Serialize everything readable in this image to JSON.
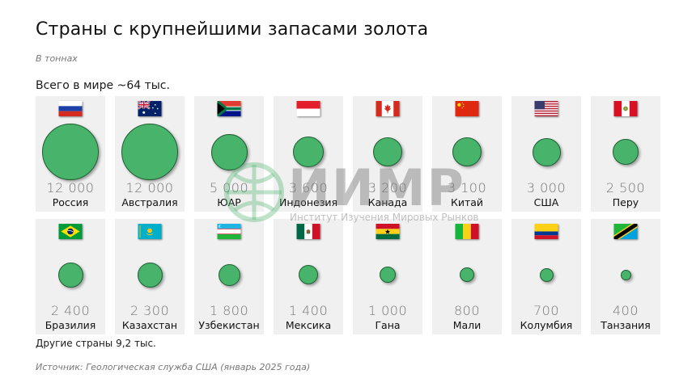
{
  "header": {
    "title": "Страны с крупнейшими запасами золота",
    "subtitle": "В тоннах",
    "world_total": "Всего в мире ~64 тыс."
  },
  "footer": {
    "others": "Другие страны 9,2 тыс.",
    "source": "Источник: Геологическая служба США (январь 2025 года)"
  },
  "watermark": {
    "logo": "ИИМР",
    "tagline": "Институт Изучения Мировых Рынков"
  },
  "colors": {
    "circle": "#48b36a",
    "circle_border": "#1f5f33",
    "card": "#f0f0f0"
  },
  "cards": [
    {
      "name": "Россия",
      "value": "12 000",
      "flag": "russia"
    },
    {
      "name": "Австралия",
      "value": "12 000",
      "flag": "australia"
    },
    {
      "name": "ЮАР",
      "value": "5 000",
      "flag": "south-africa"
    },
    {
      "name": "Индонезия",
      "value": "3 600",
      "flag": "indonesia"
    },
    {
      "name": "Канада",
      "value": "3 200",
      "flag": "canada"
    },
    {
      "name": "Китай",
      "value": "3 100",
      "flag": "china"
    },
    {
      "name": "США",
      "value": "3 000",
      "flag": "usa"
    },
    {
      "name": "Перу",
      "value": "2 500",
      "flag": "peru"
    },
    {
      "name": "Бразилия",
      "value": "2 400",
      "flag": "brazil"
    },
    {
      "name": "Казахстан",
      "value": "2 300",
      "flag": "kazakhstan"
    },
    {
      "name": "Узбекистан",
      "value": "1 800",
      "flag": "uzbekistan"
    },
    {
      "name": "Мексика",
      "value": "1 400",
      "flag": "mexico"
    },
    {
      "name": "Гана",
      "value": "1 000",
      "flag": "ghana"
    },
    {
      "name": "Мали",
      "value": "800",
      "flag": "mali"
    },
    {
      "name": "Колумбия",
      "value": "700",
      "flag": "colombia"
    },
    {
      "name": "Танзания",
      "value": "400",
      "flag": "tanzania"
    }
  ],
  "chart_data": {
    "type": "bubble",
    "title": "Страны с крупнейшими запасами золота",
    "subtitle": "В тоннах",
    "unit": "тонны",
    "categories": [
      "Россия",
      "Австралия",
      "ЮАР",
      "Индонезия",
      "Канада",
      "Китай",
      "США",
      "Перу",
      "Бразилия",
      "Казахстан",
      "Узбекистан",
      "Мексика",
      "Гана",
      "Мали",
      "Колумбия",
      "Танзания"
    ],
    "values": [
      12000,
      12000,
      5000,
      3600,
      3200,
      3100,
      3000,
      2500,
      2400,
      2300,
      1800,
      1400,
      1000,
      800,
      700,
      400
    ],
    "annotations": [
      "Всего в мире ~64 тыс.",
      "Другие страны 9,2 тыс."
    ],
    "source": "Источник: Геологическая служба США (январь 2025 года)"
  }
}
